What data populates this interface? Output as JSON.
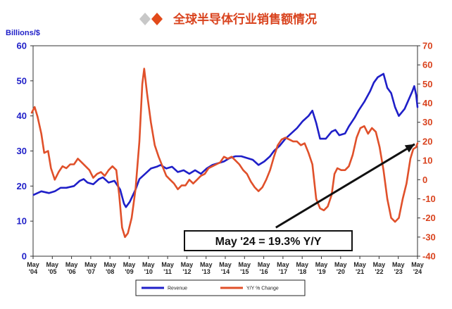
{
  "header": {
    "title": "全球半导体行业销售额情况"
  },
  "chart_data": {
    "type": "line",
    "title": "全球半导体行业销售额情况",
    "ylabel": "Billions/$",
    "ylim": [
      0,
      60
    ],
    "y2lim": [
      -40,
      70
    ],
    "yticks": [
      0,
      10,
      20,
      30,
      40,
      50,
      60
    ],
    "y2ticks": [
      -40,
      -30,
      -20,
      -10,
      0,
      10,
      20,
      30,
      40,
      50,
      60,
      70
    ],
    "xticks": [
      {
        "l1": "May",
        "l2": "'04",
        "x": 2004.37
      },
      {
        "l1": "May",
        "l2": "'05",
        "x": 2005.37
      },
      {
        "l1": "May",
        "l2": "'06",
        "x": 2006.37
      },
      {
        "l1": "May",
        "l2": "'07",
        "x": 2007.37
      },
      {
        "l1": "May",
        "l2": "'08",
        "x": 2008.37
      },
      {
        "l1": "May",
        "l2": "'09",
        "x": 2009.37
      },
      {
        "l1": "May",
        "l2": "'10",
        "x": 2010.37
      },
      {
        "l1": "May",
        "l2": "'11",
        "x": 2011.37
      },
      {
        "l1": "May",
        "l2": "'12",
        "x": 2012.37
      },
      {
        "l1": "May",
        "l2": "'13",
        "x": 2013.37
      },
      {
        "l1": "May",
        "l2": "'14",
        "x": 2014.37
      },
      {
        "l1": "May",
        "l2": "'15",
        "x": 2015.37
      },
      {
        "l1": "May",
        "l2": "'16",
        "x": 2016.37
      },
      {
        "l1": "May",
        "l2": "'17",
        "x": 2017.37
      },
      {
        "l1": "May",
        "l2": "'18",
        "x": 2018.37
      },
      {
        "l1": "May",
        "l2": "'19",
        "x": 2019.37
      },
      {
        "l1": "May",
        "l2": "'20",
        "x": 2020.37
      },
      {
        "l1": "May",
        "l2": "'21",
        "x": 2021.37
      },
      {
        "l1": "May",
        "l2": "'22",
        "x": 2022.37
      },
      {
        "l1": "May",
        "l2": "'23",
        "x": 2023.37
      },
      {
        "l1": "May",
        "l2": "'24",
        "x": 2024.37
      }
    ],
    "series": [
      {
        "name": "Revenue",
        "axis": "left",
        "color": "#1f1fc8",
        "points": [
          [
            2004.4,
            17.5
          ],
          [
            2004.8,
            18.5
          ],
          [
            2005.2,
            18.0
          ],
          [
            2005.5,
            18.5
          ],
          [
            2005.8,
            19.5
          ],
          [
            2006.1,
            19.5
          ],
          [
            2006.5,
            20.0
          ],
          [
            2006.8,
            21.5
          ],
          [
            2007.0,
            22.0
          ],
          [
            2007.2,
            21.0
          ],
          [
            2007.5,
            20.5
          ],
          [
            2007.8,
            22.0
          ],
          [
            2008.0,
            22.5
          ],
          [
            2008.3,
            21.0
          ],
          [
            2008.6,
            21.5
          ],
          [
            2008.9,
            19.0
          ],
          [
            2009.1,
            15.0
          ],
          [
            2009.2,
            14.0
          ],
          [
            2009.4,
            15.5
          ],
          [
            2009.7,
            19.0
          ],
          [
            2009.9,
            22.0
          ],
          [
            2010.2,
            23.5
          ],
          [
            2010.5,
            25.0
          ],
          [
            2010.8,
            25.5
          ],
          [
            2011.0,
            26.0
          ],
          [
            2011.3,
            25.0
          ],
          [
            2011.6,
            25.5
          ],
          [
            2011.9,
            24.0
          ],
          [
            2012.2,
            24.5
          ],
          [
            2012.5,
            23.5
          ],
          [
            2012.8,
            24.5
          ],
          [
            2013.1,
            23.5
          ],
          [
            2013.4,
            25.0
          ],
          [
            2013.7,
            26.0
          ],
          [
            2014.0,
            26.5
          ],
          [
            2014.3,
            27.0
          ],
          [
            2014.6,
            28.0
          ],
          [
            2014.9,
            28.5
          ],
          [
            2015.2,
            28.5
          ],
          [
            2015.5,
            28.0
          ],
          [
            2015.8,
            27.5
          ],
          [
            2016.1,
            26.0
          ],
          [
            2016.4,
            27.0
          ],
          [
            2016.7,
            28.5
          ],
          [
            2016.9,
            30.0
          ],
          [
            2017.2,
            31.5
          ],
          [
            2017.5,
            33.5
          ],
          [
            2017.8,
            35.0
          ],
          [
            2018.1,
            36.5
          ],
          [
            2018.4,
            38.5
          ],
          [
            2018.7,
            40.0
          ],
          [
            2018.9,
            41.5
          ],
          [
            2019.1,
            38.0
          ],
          [
            2019.3,
            33.5
          ],
          [
            2019.6,
            33.5
          ],
          [
            2019.9,
            35.5
          ],
          [
            2020.1,
            36.0
          ],
          [
            2020.3,
            34.5
          ],
          [
            2020.6,
            35.0
          ],
          [
            2020.8,
            37.0
          ],
          [
            2021.1,
            39.5
          ],
          [
            2021.3,
            41.5
          ],
          [
            2021.6,
            44.0
          ],
          [
            2021.9,
            47.0
          ],
          [
            2022.1,
            49.5
          ],
          [
            2022.3,
            51.0
          ],
          [
            2022.6,
            52.0
          ],
          [
            2022.8,
            48.0
          ],
          [
            2023.0,
            46.5
          ],
          [
            2023.2,
            42.5
          ],
          [
            2023.4,
            40.0
          ],
          [
            2023.7,
            42.0
          ],
          [
            2023.9,
            44.5
          ],
          [
            2024.1,
            47.0
          ],
          [
            2024.2,
            48.5
          ],
          [
            2024.3,
            46.0
          ],
          [
            2024.37,
            42.5
          ]
        ]
      },
      {
        "name": "Y/Y % Change",
        "axis": "right",
        "color": "#e0502a",
        "points": [
          [
            2004.3,
            35
          ],
          [
            2004.45,
            38
          ],
          [
            2004.6,
            33
          ],
          [
            2004.8,
            24
          ],
          [
            2004.95,
            14
          ],
          [
            2005.15,
            15
          ],
          [
            2005.3,
            6
          ],
          [
            2005.5,
            0
          ],
          [
            2005.7,
            4
          ],
          [
            2005.9,
            7
          ],
          [
            2006.1,
            6
          ],
          [
            2006.3,
            8
          ],
          [
            2006.5,
            8
          ],
          [
            2006.7,
            11
          ],
          [
            2006.9,
            9
          ],
          [
            2007.1,
            7
          ],
          [
            2007.3,
            5
          ],
          [
            2007.5,
            1
          ],
          [
            2007.7,
            3
          ],
          [
            2007.9,
            4
          ],
          [
            2008.1,
            2
          ],
          [
            2008.3,
            5
          ],
          [
            2008.5,
            7
          ],
          [
            2008.7,
            5
          ],
          [
            2008.85,
            -8
          ],
          [
            2009.0,
            -25
          ],
          [
            2009.15,
            -30
          ],
          [
            2009.3,
            -28
          ],
          [
            2009.5,
            -20
          ],
          [
            2009.7,
            -5
          ],
          [
            2009.9,
            20
          ],
          [
            2010.05,
            50
          ],
          [
            2010.15,
            58
          ],
          [
            2010.3,
            45
          ],
          [
            2010.5,
            30
          ],
          [
            2010.7,
            18
          ],
          [
            2010.9,
            12
          ],
          [
            2011.1,
            7
          ],
          [
            2011.3,
            2
          ],
          [
            2011.5,
            0
          ],
          [
            2011.7,
            -2
          ],
          [
            2011.9,
            -5
          ],
          [
            2012.1,
            -3
          ],
          [
            2012.3,
            -3
          ],
          [
            2012.5,
            0
          ],
          [
            2012.7,
            -2
          ],
          [
            2012.9,
            0
          ],
          [
            2013.1,
            2
          ],
          [
            2013.3,
            3
          ],
          [
            2013.5,
            6
          ],
          [
            2013.7,
            7
          ],
          [
            2013.9,
            8
          ],
          [
            2014.1,
            9
          ],
          [
            2014.3,
            12
          ],
          [
            2014.5,
            11
          ],
          [
            2014.7,
            12
          ],
          [
            2014.9,
            10
          ],
          [
            2015.1,
            8
          ],
          [
            2015.3,
            5
          ],
          [
            2015.5,
            3
          ],
          [
            2015.7,
            -1
          ],
          [
            2015.9,
            -4
          ],
          [
            2016.1,
            -6
          ],
          [
            2016.3,
            -4
          ],
          [
            2016.5,
            0
          ],
          [
            2016.7,
            5
          ],
          [
            2016.9,
            12
          ],
          [
            2017.1,
            18
          ],
          [
            2017.3,
            21
          ],
          [
            2017.5,
            22
          ],
          [
            2017.7,
            21
          ],
          [
            2017.9,
            20
          ],
          [
            2018.1,
            20
          ],
          [
            2018.3,
            18
          ],
          [
            2018.5,
            19
          ],
          [
            2018.7,
            14
          ],
          [
            2018.9,
            8
          ],
          [
            2019.1,
            -10
          ],
          [
            2019.3,
            -15
          ],
          [
            2019.5,
            -16
          ],
          [
            2019.7,
            -14
          ],
          [
            2019.9,
            -8
          ],
          [
            2020.05,
            3
          ],
          [
            2020.2,
            6
          ],
          [
            2020.4,
            5
          ],
          [
            2020.6,
            5
          ],
          [
            2020.8,
            7
          ],
          [
            2021.0,
            13
          ],
          [
            2021.2,
            22
          ],
          [
            2021.4,
            27
          ],
          [
            2021.6,
            28
          ],
          [
            2021.8,
            24
          ],
          [
            2022.0,
            27
          ],
          [
            2022.2,
            25
          ],
          [
            2022.4,
            17
          ],
          [
            2022.6,
            5
          ],
          [
            2022.8,
            -10
          ],
          [
            2023.0,
            -20
          ],
          [
            2023.2,
            -22
          ],
          [
            2023.4,
            -20
          ],
          [
            2023.6,
            -10
          ],
          [
            2023.8,
            -2
          ],
          [
            2024.0,
            11
          ],
          [
            2024.15,
            16
          ],
          [
            2024.3,
            17
          ],
          [
            2024.37,
            19
          ]
        ]
      }
    ],
    "legend": {
      "placement": "bottom-center"
    },
    "annotation": {
      "text": "May '24 = 19.3% Y/Y",
      "arrow_from": [
        2017.0,
        -25
      ],
      "arrow_to": [
        2024.37,
        19.3
      ]
    }
  }
}
